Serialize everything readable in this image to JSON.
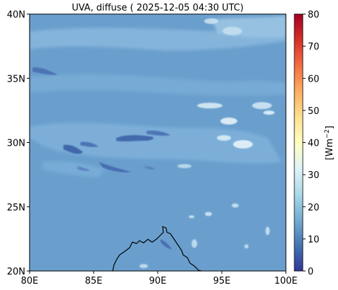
{
  "title": "UVA, diffuse ( 2025-12-05 04:30 UTC)",
  "map": {
    "lon_range": [
      80,
      100
    ],
    "lat_range": [
      20,
      40
    ],
    "x_ticks": [
      {
        "value": 80,
        "label": "80E"
      },
      {
        "value": 85,
        "label": "85E"
      },
      {
        "value": 90,
        "label": "90E"
      },
      {
        "value": 95,
        "label": "95E"
      },
      {
        "value": 100,
        "label": "100E"
      }
    ],
    "y_ticks": [
      {
        "value": 20,
        "label": "20N"
      },
      {
        "value": 25,
        "label": "25N"
      },
      {
        "value": 30,
        "label": "30N"
      },
      {
        "value": 35,
        "label": "35N"
      },
      {
        "value": 40,
        "label": "40N"
      }
    ],
    "background_color": "#6a9fcd",
    "coastline_color": "#000000"
  },
  "colorbar": {
    "range": [
      0,
      80
    ],
    "ticks": [
      {
        "value": 0,
        "label": "0"
      },
      {
        "value": 10,
        "label": "10"
      },
      {
        "value": 20,
        "label": "20"
      },
      {
        "value": 30,
        "label": "30"
      },
      {
        "value": 40,
        "label": "40"
      },
      {
        "value": 50,
        "label": "50"
      },
      {
        "value": 60,
        "label": "60"
      },
      {
        "value": 70,
        "label": "70"
      },
      {
        "value": 80,
        "label": "80"
      }
    ],
    "label_main": "[Wm",
    "label_sup": "−2",
    "label_end": "]",
    "colormap": "RdYlBu_r",
    "stops": [
      "#313695",
      "#4575b4",
      "#74add1",
      "#abd9e9",
      "#e0f3f8",
      "#ffffbf",
      "#fee090",
      "#fdae61",
      "#f46d43",
      "#d73027",
      "#a50026"
    ]
  }
}
